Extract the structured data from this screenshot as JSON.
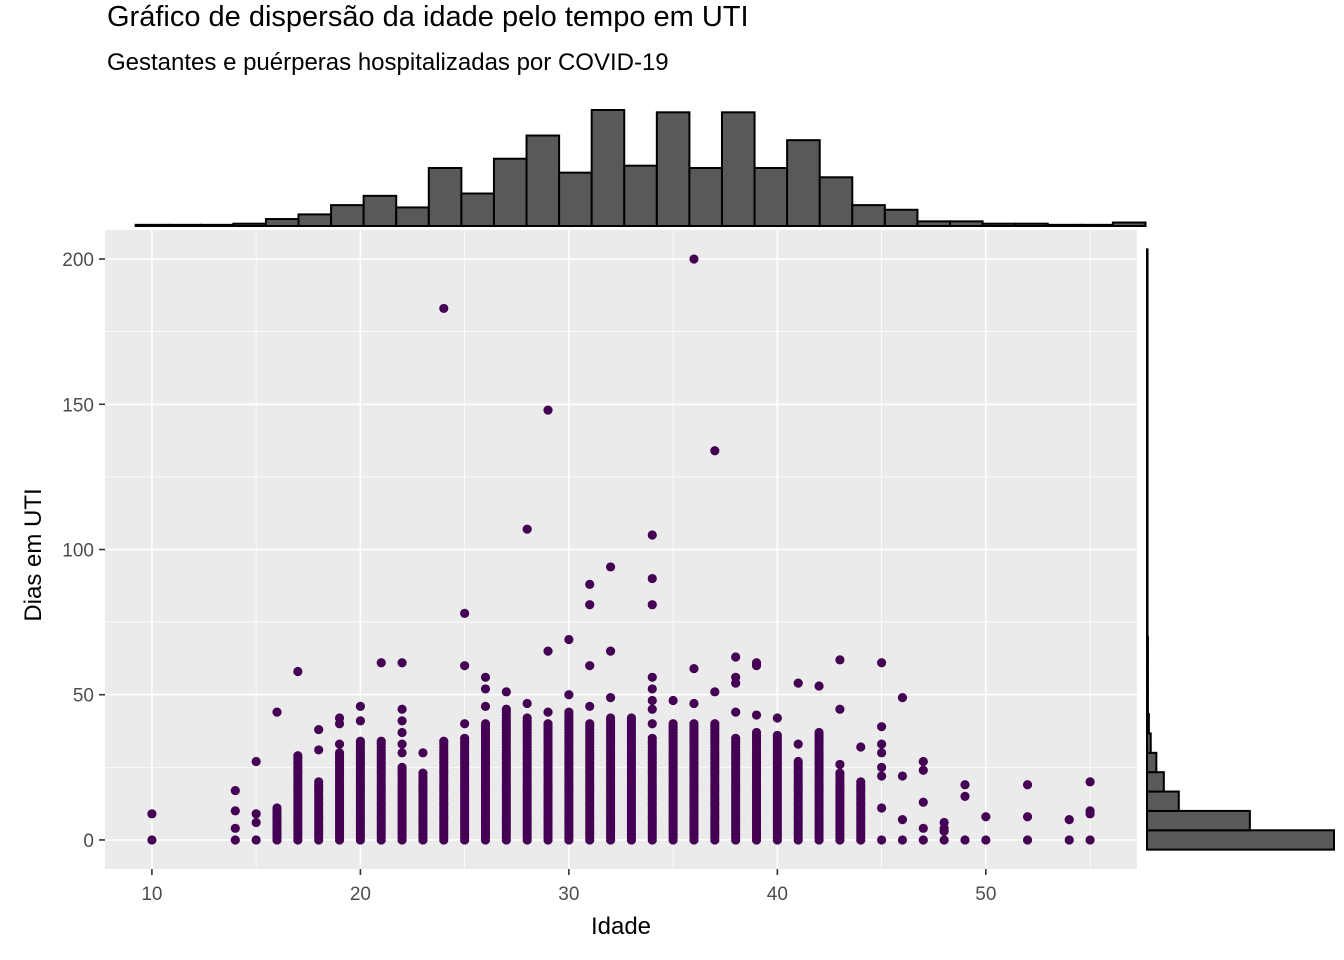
{
  "chart_data": {
    "type": "scatter",
    "title": "Gráfico de dispersão da idade pelo tempo em UTI",
    "subtitle": "Gestantes e puérperas hospitalizadas por COVID-19",
    "xlabel": "Idade",
    "ylabel": "Dias em UTI",
    "xlim": [
      7.75,
      57.25
    ],
    "ylim": [
      -10,
      210
    ],
    "x_ticks": [
      "10",
      "20",
      "30",
      "40",
      "50"
    ],
    "y_ticks": [
      "0",
      "50",
      "100",
      "150",
      "200"
    ],
    "grid": true,
    "point_color": "#440154",
    "panel_background": "#ebebeb",
    "columns": [
      {
        "x": 10,
        "dense_to": 0,
        "extra": [
          9
        ]
      },
      {
        "x": 14,
        "dense_to": 0,
        "extra": [
          4,
          10,
          17
        ]
      },
      {
        "x": 15,
        "dense_to": 0,
        "extra": [
          6,
          9,
          27
        ]
      },
      {
        "x": 16,
        "dense_to": 11,
        "extra": [
          44
        ]
      },
      {
        "x": 17,
        "dense_to": 29,
        "extra": [
          58
        ]
      },
      {
        "x": 18,
        "dense_to": 20,
        "extra": [
          31,
          38
        ]
      },
      {
        "x": 19,
        "dense_to": 30,
        "extra": [
          33,
          40,
          42
        ]
      },
      {
        "x": 20,
        "dense_to": 34,
        "extra": [
          41,
          46
        ]
      },
      {
        "x": 21,
        "dense_to": 34,
        "extra": [
          61
        ]
      },
      {
        "x": 22,
        "dense_to": 25,
        "extra": [
          30,
          33,
          37,
          41,
          45,
          61
        ]
      },
      {
        "x": 23,
        "dense_to": 23,
        "extra": [
          30
        ]
      },
      {
        "x": 24,
        "dense_to": 34,
        "extra": [
          183
        ]
      },
      {
        "x": 25,
        "dense_to": 35,
        "extra": [
          40,
          60,
          78
        ]
      },
      {
        "x": 26,
        "dense_to": 40,
        "extra": [
          46,
          52,
          56
        ]
      },
      {
        "x": 27,
        "dense_to": 45,
        "extra": [
          51
        ]
      },
      {
        "x": 28,
        "dense_to": 42,
        "extra": [
          47,
          107
        ]
      },
      {
        "x": 29,
        "dense_to": 40,
        "extra": [
          44,
          65,
          148
        ]
      },
      {
        "x": 30,
        "dense_to": 44,
        "extra": [
          50,
          69
        ]
      },
      {
        "x": 31,
        "dense_to": 40,
        "extra": [
          46,
          60,
          81,
          88
        ]
      },
      {
        "x": 32,
        "dense_to": 42,
        "extra": [
          49,
          65,
          94
        ]
      },
      {
        "x": 33,
        "dense_to": 42,
        "extra": []
      },
      {
        "x": 34,
        "dense_to": 35,
        "extra": [
          40,
          45,
          48,
          52,
          56,
          81,
          90,
          105
        ]
      },
      {
        "x": 35,
        "dense_to": 40,
        "extra": [
          48
        ]
      },
      {
        "x": 36,
        "dense_to": 40,
        "extra": [
          47,
          59,
          200
        ]
      },
      {
        "x": 37,
        "dense_to": 40,
        "extra": [
          51,
          134
        ]
      },
      {
        "x": 38,
        "dense_to": 35,
        "extra": [
          44,
          54,
          56,
          63
        ]
      },
      {
        "x": 39,
        "dense_to": 37,
        "extra": [
          43,
          60,
          61
        ]
      },
      {
        "x": 40,
        "dense_to": 36,
        "extra": [
          42
        ]
      },
      {
        "x": 41,
        "dense_to": 27,
        "extra": [
          33,
          54
        ]
      },
      {
        "x": 42,
        "dense_to": 37,
        "extra": [
          53
        ]
      },
      {
        "x": 43,
        "dense_to": 23,
        "extra": [
          26,
          45,
          62
        ]
      },
      {
        "x": 44,
        "dense_to": 20,
        "extra": [
          32
        ]
      },
      {
        "x": 45,
        "dense_to": 0,
        "extra": [
          11,
          22,
          25,
          30,
          33,
          39,
          61
        ]
      },
      {
        "x": 46,
        "dense_to": 0,
        "extra": [
          7,
          22,
          49
        ]
      },
      {
        "x": 47,
        "dense_to": 0,
        "extra": [
          4,
          13,
          24,
          27
        ]
      },
      {
        "x": 48,
        "dense_to": 0,
        "extra": [
          3,
          4,
          6
        ]
      },
      {
        "x": 49,
        "dense_to": 0,
        "extra": [
          15,
          19
        ]
      },
      {
        "x": 50,
        "dense_to": 0,
        "extra": [
          8
        ]
      },
      {
        "x": 52,
        "dense_to": 0,
        "extra": [
          8,
          19
        ]
      },
      {
        "x": 54,
        "dense_to": 0,
        "extra": [
          7
        ]
      },
      {
        "x": 55,
        "dense_to": 0,
        "extra": [
          9,
          10,
          20
        ]
      }
    ],
    "marginal_x_histogram": {
      "bin_width": 1.5625,
      "bin_start": 9.21875,
      "counts": [
        0.5,
        0.5,
        0.5,
        1,
        3,
        5,
        9,
        13,
        8,
        25,
        14,
        29,
        39,
        23,
        50,
        26,
        49,
        25,
        49,
        25,
        37,
        21,
        9,
        7,
        2,
        2,
        1,
        1,
        0.5,
        0.5,
        1.5
      ]
    },
    "marginal_y_histogram": {
      "bin_width": 6.6667,
      "bin_start": -3.3333,
      "counts": [
        100,
        55,
        17,
        9,
        5,
        2,
        1,
        0.5,
        0.5,
        0.5,
        0.5,
        0.3,
        0.3,
        0.3,
        0.3,
        0.3,
        0.3,
        0.3,
        0.3,
        0.3,
        0.3,
        0.3,
        0.3,
        0.3,
        0.3,
        0.3,
        0.3,
        0.3,
        0.3,
        0.3,
        0.3
      ]
    }
  }
}
